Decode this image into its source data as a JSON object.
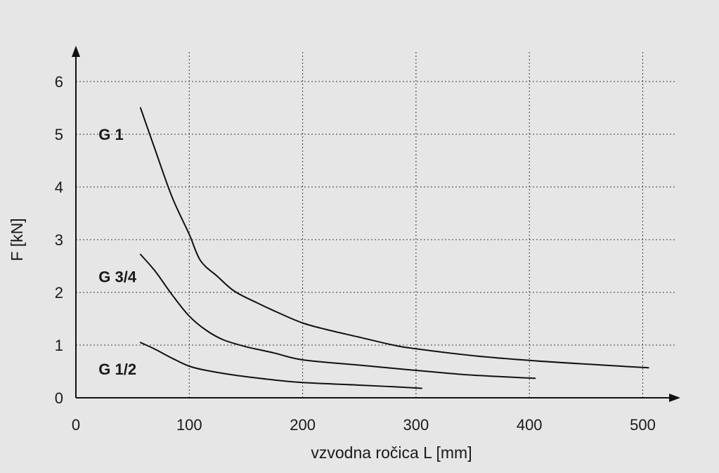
{
  "chart_data": {
    "type": "line",
    "title": "",
    "xlabel": "vzvodna ročica L [mm]",
    "ylabel": "F [kN]",
    "xlim": [
      0,
      530
    ],
    "ylim": [
      0,
      6.4
    ],
    "x_ticks": [
      0,
      100,
      200,
      300,
      400,
      500
    ],
    "y_ticks": [
      0,
      1,
      2,
      3,
      4,
      5,
      6
    ],
    "grid": true,
    "series": [
      {
        "name": "G 1",
        "points": [
          [
            57,
            5.5
          ],
          [
            70,
            4.7
          ],
          [
            85,
            3.8
          ],
          [
            100,
            3.1
          ],
          [
            110,
            2.6
          ],
          [
            125,
            2.3
          ],
          [
            140,
            2.02
          ],
          [
            160,
            1.8
          ],
          [
            180,
            1.6
          ],
          [
            200,
            1.42
          ],
          [
            220,
            1.3
          ],
          [
            250,
            1.15
          ],
          [
            280,
            1.0
          ],
          [
            300,
            0.93
          ],
          [
            350,
            0.8
          ],
          [
            400,
            0.71
          ],
          [
            450,
            0.64
          ],
          [
            505,
            0.57
          ]
        ]
      },
      {
        "name": "G 3/4",
        "points": [
          [
            57,
            2.72
          ],
          [
            70,
            2.4
          ],
          [
            85,
            1.95
          ],
          [
            100,
            1.55
          ],
          [
            115,
            1.28
          ],
          [
            130,
            1.1
          ],
          [
            150,
            0.97
          ],
          [
            175,
            0.85
          ],
          [
            200,
            0.72
          ],
          [
            250,
            0.62
          ],
          [
            300,
            0.52
          ],
          [
            350,
            0.43
          ],
          [
            405,
            0.37
          ]
        ]
      },
      {
        "name": "G 1/2",
        "points": [
          [
            57,
            1.05
          ],
          [
            70,
            0.92
          ],
          [
            85,
            0.75
          ],
          [
            100,
            0.6
          ],
          [
            115,
            0.52
          ],
          [
            140,
            0.43
          ],
          [
            170,
            0.35
          ],
          [
            200,
            0.29
          ],
          [
            250,
            0.24
          ],
          [
            280,
            0.21
          ],
          [
            305,
            0.18
          ]
        ]
      }
    ],
    "labels": [
      {
        "text": "G 1",
        "x": 20,
        "y": 5.0
      },
      {
        "text": "G 3/4",
        "x": 20,
        "y": 2.3
      },
      {
        "text": "G 1/2",
        "x": 20,
        "y": 0.55
      }
    ]
  }
}
